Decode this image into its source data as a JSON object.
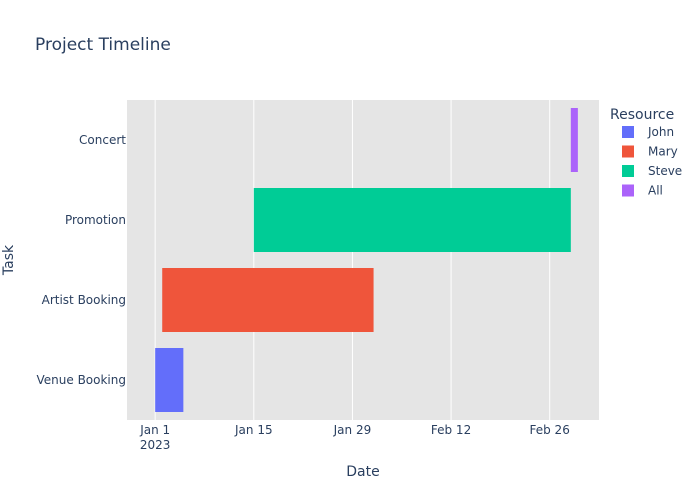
{
  "chart_data": {
    "type": "bar",
    "title": "Project Timeline",
    "xlabel": "Date",
    "ylabel": "Task",
    "x_axis": {
      "type": "date",
      "range": [
        "2022-12-28",
        "2023-03-05"
      ],
      "ticks": [
        {
          "date": "2023-01-01",
          "label": "Jan 1",
          "sublabel": "2023"
        },
        {
          "date": "2023-01-15",
          "label": "Jan 15",
          "sublabel": ""
        },
        {
          "date": "2023-01-29",
          "label": "Jan 29",
          "sublabel": ""
        },
        {
          "date": "2023-02-12",
          "label": "Feb 12",
          "sublabel": ""
        },
        {
          "date": "2023-02-26",
          "label": "Feb 26",
          "sublabel": ""
        }
      ]
    },
    "grid": true,
    "legend": {
      "title": "Resource",
      "placement": "right",
      "entries": [
        {
          "name": "John",
          "color": "#636efa"
        },
        {
          "name": "Mary",
          "color": "#ef553b"
        },
        {
          "name": "Steve",
          "color": "#00cc96"
        },
        {
          "name": "All",
          "color": "#ab63fa"
        }
      ]
    },
    "categories": [
      "Venue Booking",
      "Artist Booking",
      "Promotion",
      "Concert"
    ],
    "tasks": [
      {
        "task": "Venue Booking",
        "start": "2023-01-01",
        "finish": "2023-01-05",
        "resource": "John"
      },
      {
        "task": "Artist Booking",
        "start": "2023-01-02",
        "finish": "2023-02-01",
        "resource": "Mary"
      },
      {
        "task": "Promotion",
        "start": "2023-01-15",
        "finish": "2023-03-01",
        "resource": "Steve"
      },
      {
        "task": "Concert",
        "start": "2023-03-01",
        "finish": "2023-03-02",
        "resource": "All"
      }
    ]
  }
}
